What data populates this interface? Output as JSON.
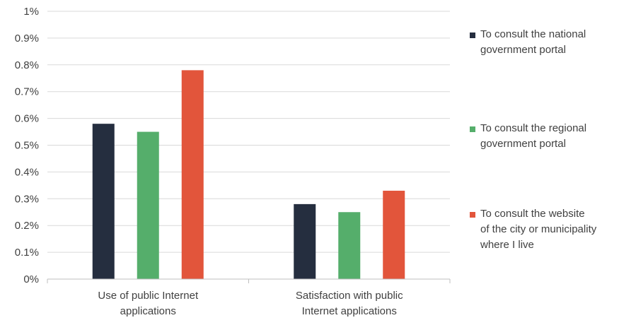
{
  "chart_data": {
    "type": "bar",
    "categories": [
      "Use of public Internet applications",
      "Satisfaction with public Internet applications"
    ],
    "category_lines": [
      [
        "Use of public Internet",
        "applications"
      ],
      [
        "Satisfaction with public",
        "Internet applications"
      ]
    ],
    "series": [
      {
        "name": "To consult the national government portal",
        "values": [
          0.58,
          0.28
        ],
        "color": "#252e3f"
      },
      {
        "name": "To consult the regional government portal",
        "values": [
          0.55,
          0.25
        ],
        "color": "#55ae6b"
      },
      {
        "name": "To consult the website of the city or municipality where I live",
        "values": [
          0.78,
          0.33
        ],
        "color": "#e2553b"
      }
    ],
    "ylim": [
      0,
      1
    ],
    "yticks": [
      "0%",
      "0.1%",
      "0.2%",
      "0.3%",
      "0.4%",
      "0.5%",
      "0.6%",
      "0.7%",
      "0.8%",
      "0.9%",
      "1%"
    ],
    "grid": true,
    "legend_position": "right",
    "title": "",
    "xlabel": "",
    "ylabel": ""
  },
  "legend": [
    {
      "lines": [
        "To consult the national",
        "government portal"
      ],
      "color": "#252e3f"
    },
    {
      "lines": [
        "To consult the regional",
        "government portal"
      ],
      "color": "#55ae6b"
    },
    {
      "lines": [
        "To consult the website",
        "of the city or municipality",
        "where I live"
      ],
      "color": "#e2553b"
    }
  ]
}
